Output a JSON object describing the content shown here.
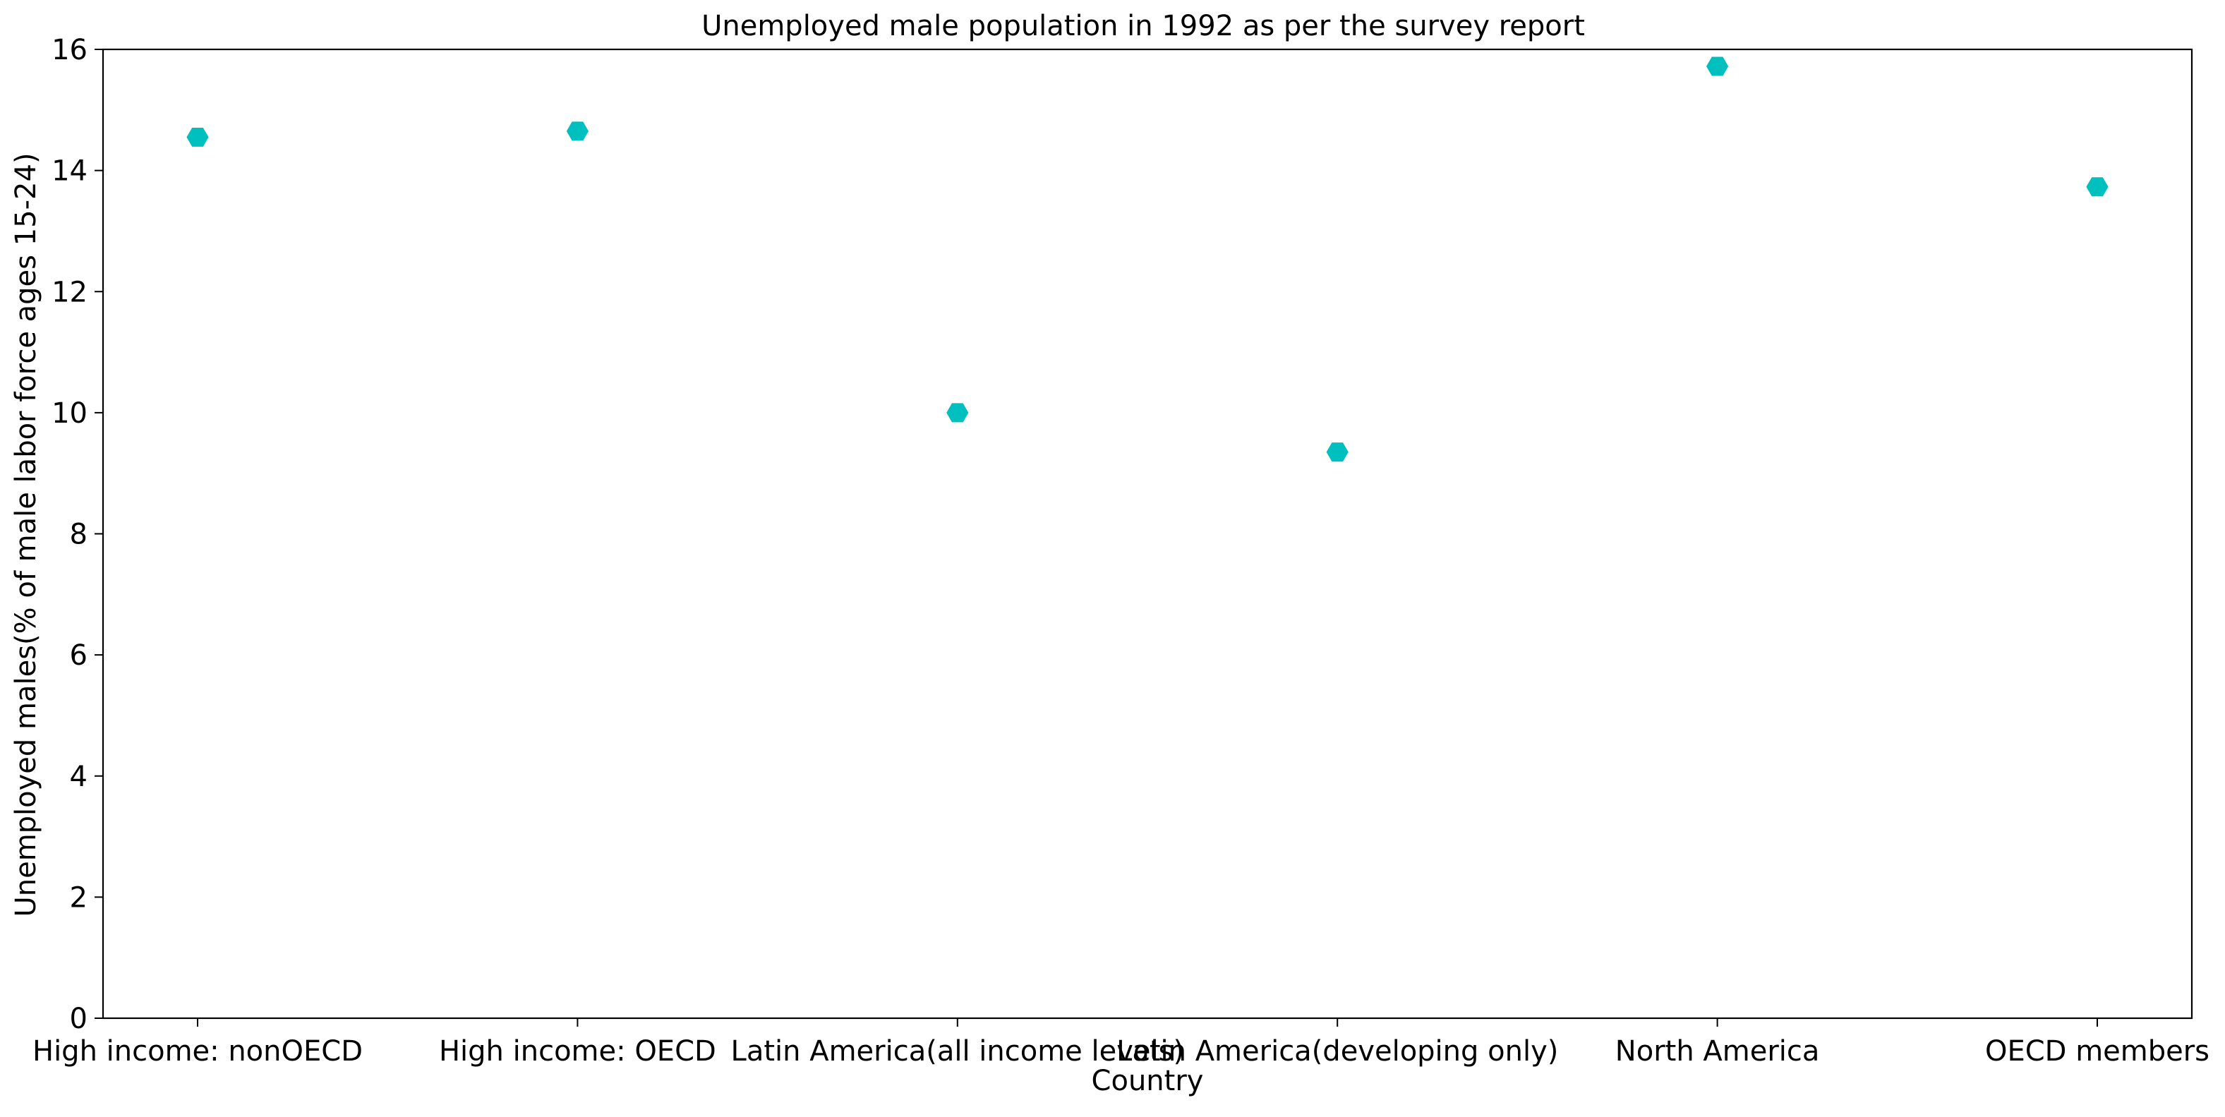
{
  "chart_data": {
    "type": "scatter",
    "title": "Unemployed male population in 1992 as per the survey report",
    "xlabel": "Country",
    "ylabel": "Unemployed males(% of male labor force ages 15-24)",
    "categories": [
      "High income: nonOECD",
      "High income: OECD",
      "Latin America(all income levels)",
      "Latin America(developing only)",
      "North America",
      "OECD members"
    ],
    "series": [
      {
        "values": [
          14.55,
          14.65,
          10.0,
          9.35,
          15.72,
          13.73
        ],
        "color": "#00bfbf",
        "marker": "hexagon"
      }
    ],
    "ylim": [
      0,
      16
    ],
    "yticks": [
      0,
      2,
      4,
      6,
      8,
      10,
      12,
      14,
      16
    ],
    "grid": false,
    "legend": false
  }
}
